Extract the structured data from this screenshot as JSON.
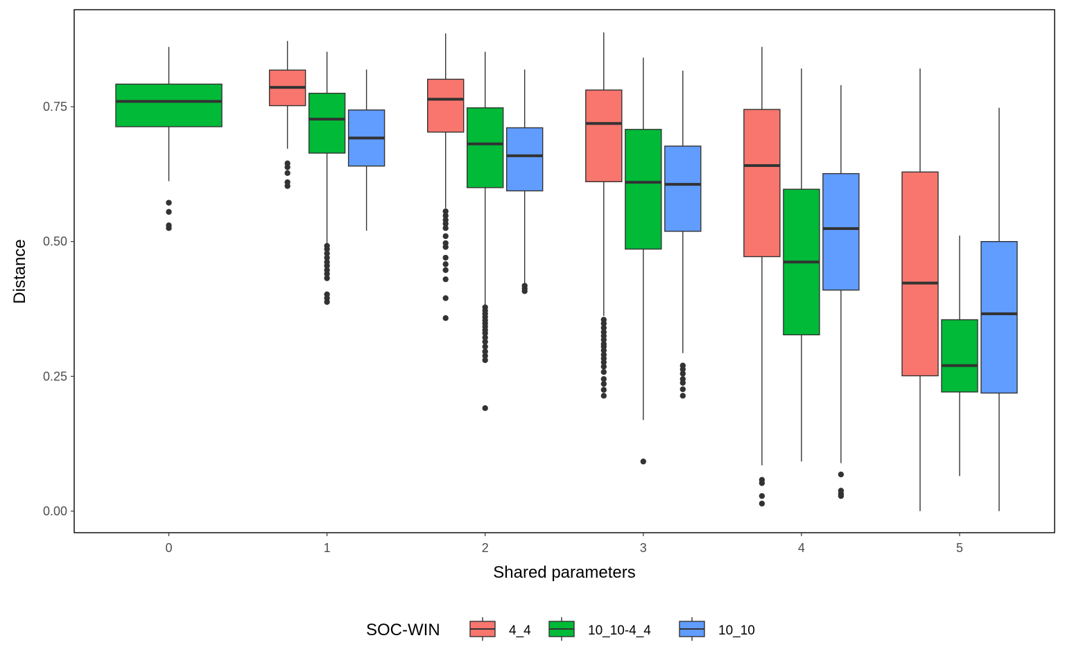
{
  "chart_data": {
    "type": "boxplot",
    "title": "",
    "xlabel": "Shared parameters",
    "ylabel": "Distance",
    "categories": [
      "0",
      "1",
      "2",
      "3",
      "4",
      "5"
    ],
    "ylim": [
      -0.04,
      0.93
    ],
    "yticks": [
      0,
      0.25,
      0.5,
      0.75
    ],
    "ytick_labels": [
      "0.00",
      "0.25",
      "0.50",
      "0.75"
    ],
    "grid": false,
    "legend": {
      "title": "SOC-WIN",
      "position": "bottom"
    },
    "colors": {
      "4_4": "#F8766D",
      "10_10-4_4": "#00BA38",
      "10_10": "#619CFF"
    },
    "series": [
      {
        "name": "4_4",
        "color": "#F8766D",
        "boxes": [
          null,
          {
            "q1": 0.752,
            "median": 0.786,
            "q3": 0.818,
            "whisker_low": 0.672,
            "whisker_high": 0.872,
            "outliers": [
              0.645,
              0.638,
              0.627,
              0.61,
              0.603
            ]
          },
          {
            "q1": 0.703,
            "median": 0.764,
            "q3": 0.801,
            "whisker_low": 0.562,
            "whisker_high": 0.886,
            "outliers": [
              0.556,
              0.548,
              0.54,
              0.533,
              0.525,
              0.51,
              0.497,
              0.49,
              0.47,
              0.458,
              0.447,
              0.43,
              0.395,
              0.358
            ]
          },
          {
            "q1": 0.611,
            "median": 0.719,
            "q3": 0.781,
            "whisker_low": 0.362,
            "whisker_high": 0.888,
            "outliers": [
              0.355,
              0.348,
              0.34,
              0.332,
              0.325,
              0.318,
              0.31,
              0.305,
              0.298,
              0.29,
              0.283,
              0.276,
              0.268,
              0.258,
              0.245,
              0.236,
              0.225,
              0.214
            ]
          },
          {
            "q1": 0.472,
            "median": 0.641,
            "q3": 0.745,
            "whisker_low": 0.085,
            "whisker_high": 0.861,
            "outliers": [
              0.058,
              0.052,
              0.028,
              0.014
            ]
          },
          {
            "q1": 0.251,
            "median": 0.423,
            "q3": 0.629,
            "whisker_low": 0.0,
            "whisker_high": 0.821,
            "outliers": []
          }
        ]
      },
      {
        "name": "10_10-4_4",
        "color": "#00BA38",
        "boxes": [
          {
            "q1": 0.713,
            "median": 0.76,
            "q3": 0.792,
            "whisker_low": 0.612,
            "whisker_high": 0.861,
            "outliers": [
              0.572,
              0.555,
              0.53,
              0.525
            ]
          },
          {
            "q1": 0.664,
            "median": 0.727,
            "q3": 0.775,
            "whisker_low": 0.497,
            "whisker_high": 0.852,
            "outliers": [
              0.492,
              0.486,
              0.478,
              0.47,
              0.462,
              0.455,
              0.447,
              0.44,
              0.432,
              0.402,
              0.395,
              0.388
            ]
          },
          {
            "q1": 0.6,
            "median": 0.681,
            "q3": 0.748,
            "whisker_low": 0.382,
            "whisker_high": 0.852,
            "outliers": [
              0.378,
              0.372,
              0.366,
              0.36,
              0.354,
              0.348,
              0.342,
              0.336,
              0.33,
              0.322,
              0.314,
              0.305,
              0.296,
              0.288,
              0.28,
              0.191
            ]
          },
          {
            "q1": 0.486,
            "median": 0.61,
            "q3": 0.708,
            "whisker_low": 0.169,
            "whisker_high": 0.841,
            "outliers": [
              0.092
            ]
          },
          {
            "q1": 0.327,
            "median": 0.462,
            "q3": 0.597,
            "whisker_low": 0.092,
            "whisker_high": 0.821,
            "outliers": []
          },
          {
            "q1": 0.221,
            "median": 0.27,
            "q3": 0.355,
            "whisker_low": 0.065,
            "whisker_high": 0.511,
            "outliers": []
          }
        ]
      },
      {
        "name": "10_10",
        "color": "#619CFF",
        "boxes": [
          null,
          {
            "q1": 0.64,
            "median": 0.692,
            "q3": 0.744,
            "whisker_low": 0.52,
            "whisker_high": 0.819,
            "outliers": []
          },
          {
            "q1": 0.594,
            "median": 0.659,
            "q3": 0.711,
            "whisker_low": 0.423,
            "whisker_high": 0.819,
            "outliers": [
              0.418,
              0.413,
              0.408
            ]
          },
          {
            "q1": 0.519,
            "median": 0.606,
            "q3": 0.677,
            "whisker_low": 0.293,
            "whisker_high": 0.817,
            "outliers": [
              0.27,
              0.263,
              0.255,
              0.245,
              0.238,
              0.226,
              0.214
            ]
          },
          {
            "q1": 0.41,
            "median": 0.524,
            "q3": 0.626,
            "whisker_low": 0.089,
            "whisker_high": 0.79,
            "outliers": [
              0.068,
              0.038,
              0.032,
              0.028
            ]
          },
          {
            "q1": 0.219,
            "median": 0.366,
            "q3": 0.5,
            "whisker_low": 0.0,
            "whisker_high": 0.748,
            "outliers": []
          }
        ]
      }
    ],
    "single_group_categories": [
      "0"
    ]
  }
}
